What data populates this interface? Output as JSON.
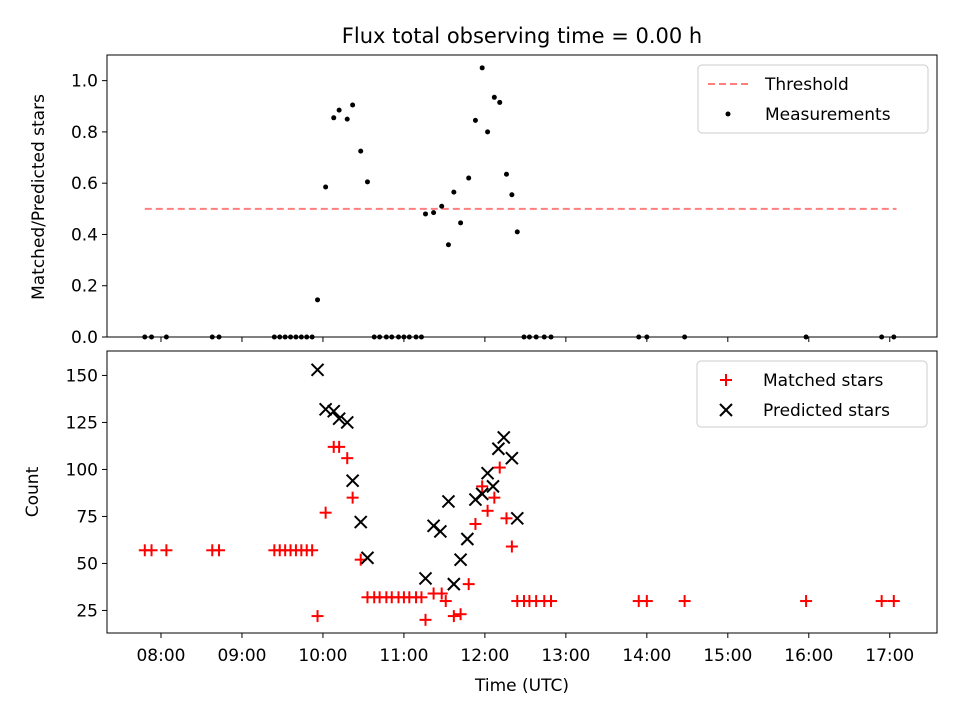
{
  "title": "Flux total observing time = 0.00 h",
  "chart_data": [
    {
      "type": "scatter",
      "ylabel": "Matched/Predicted stars",
      "ylim": [
        0,
        1.1
      ],
      "y_ticks": [
        "0.0",
        "0.2",
        "0.4",
        "0.6",
        "0.8",
        "1.0"
      ],
      "y_tick_values": [
        0,
        0.2,
        0.4,
        0.6,
        0.8,
        1.0
      ],
      "xlim": [
        "07:20",
        "17:35"
      ],
      "legend_position": "top-right",
      "threshold": {
        "name": "Threshold",
        "value": 0.5,
        "x_start": "07:48",
        "x_end": "17:05",
        "color": "#ff7f7f"
      },
      "series": [
        {
          "name": "Measurements",
          "color": "#000000",
          "marker": "dot",
          "points": [
            [
              "07:48",
              0.0
            ],
            [
              "07:53",
              0.0
            ],
            [
              "08:04",
              0.0
            ],
            [
              "08:38",
              0.0
            ],
            [
              "08:43",
              0.0
            ],
            [
              "09:24",
              0.0
            ],
            [
              "09:28",
              0.0
            ],
            [
              "09:32",
              0.0
            ],
            [
              "09:36",
              0.0
            ],
            [
              "09:40",
              0.0
            ],
            [
              "09:44",
              0.0
            ],
            [
              "09:48",
              0.0
            ],
            [
              "09:52",
              0.0
            ],
            [
              "09:56",
              0.145
            ],
            [
              "10:02",
              0.585
            ],
            [
              "10:08",
              0.855
            ],
            [
              "10:12",
              0.885
            ],
            [
              "10:18",
              0.85
            ],
            [
              "10:22",
              0.905
            ],
            [
              "10:28",
              0.725
            ],
            [
              "10:33",
              0.605
            ],
            [
              "10:38",
              0.0
            ],
            [
              "10:42",
              0.0
            ],
            [
              "10:47",
              0.0
            ],
            [
              "10:51",
              0.0
            ],
            [
              "10:56",
              0.0
            ],
            [
              "11:00",
              0.0
            ],
            [
              "11:04",
              0.0
            ],
            [
              "11:09",
              0.0
            ],
            [
              "11:13",
              0.0
            ],
            [
              "11:16",
              0.48
            ],
            [
              "11:22",
              0.485
            ],
            [
              "11:28",
              0.51
            ],
            [
              "11:33",
              0.36
            ],
            [
              "11:37",
              0.565
            ],
            [
              "11:42",
              0.445
            ],
            [
              "11:48",
              0.62
            ],
            [
              "11:53",
              0.845
            ],
            [
              "11:58",
              1.05
            ],
            [
              "12:02",
              0.8
            ],
            [
              "12:07",
              0.935
            ],
            [
              "12:11",
              0.915
            ],
            [
              "12:16",
              0.635
            ],
            [
              "12:20",
              0.555
            ],
            [
              "12:24",
              0.41
            ],
            [
              "12:29",
              0.0
            ],
            [
              "12:33",
              0.0
            ],
            [
              "12:38",
              0.0
            ],
            [
              "12:44",
              0.0
            ],
            [
              "12:49",
              0.0
            ],
            [
              "13:54",
              0.0
            ],
            [
              "14:00",
              0.0
            ],
            [
              "14:28",
              0.0
            ],
            [
              "15:58",
              0.0
            ],
            [
              "16:54",
              0.0
            ],
            [
              "17:03",
              0.0
            ]
          ]
        }
      ]
    },
    {
      "type": "scatter",
      "ylabel": "Count",
      "xlabel": "Time (UTC)",
      "ylim": [
        13,
        163
      ],
      "y_ticks": [
        "25",
        "50",
        "75",
        "100",
        "125",
        "150"
      ],
      "y_tick_values": [
        25,
        50,
        75,
        100,
        125,
        150
      ],
      "xlim": [
        "07:20",
        "17:35"
      ],
      "x_ticks": [
        "08:00",
        "09:00",
        "10:00",
        "11:00",
        "12:00",
        "13:00",
        "14:00",
        "15:00",
        "16:00",
        "17:00"
      ],
      "legend_position": "top-right",
      "series": [
        {
          "name": "Matched stars",
          "color": "#ff0000",
          "marker": "plus",
          "points": [
            [
              "07:48",
              57
            ],
            [
              "07:53",
              57
            ],
            [
              "08:04",
              57
            ],
            [
              "08:38",
              57
            ],
            [
              "08:43",
              57
            ],
            [
              "09:24",
              57
            ],
            [
              "09:28",
              57
            ],
            [
              "09:32",
              57
            ],
            [
              "09:36",
              57
            ],
            [
              "09:40",
              57
            ],
            [
              "09:44",
              57
            ],
            [
              "09:48",
              57
            ],
            [
              "09:52",
              57
            ],
            [
              "09:56",
              22
            ],
            [
              "10:02",
              77
            ],
            [
              "10:08",
              112
            ],
            [
              "10:12",
              112
            ],
            [
              "10:18",
              106
            ],
            [
              "10:22",
              85
            ],
            [
              "10:28",
              52
            ],
            [
              "10:33",
              32
            ],
            [
              "10:38",
              32
            ],
            [
              "10:42",
              32
            ],
            [
              "10:47",
              32
            ],
            [
              "10:51",
              32
            ],
            [
              "10:56",
              32
            ],
            [
              "11:00",
              32
            ],
            [
              "11:04",
              32
            ],
            [
              "11:09",
              32
            ],
            [
              "11:13",
              32
            ],
            [
              "11:16",
              20
            ],
            [
              "11:22",
              34
            ],
            [
              "11:28",
              34
            ],
            [
              "11:31",
              30
            ],
            [
              "11:37",
              22
            ],
            [
              "11:42",
              23
            ],
            [
              "11:48",
              39
            ],
            [
              "11:53",
              71
            ],
            [
              "11:58",
              91
            ],
            [
              "12:02",
              78
            ],
            [
              "12:07",
              85
            ],
            [
              "12:11",
              101
            ],
            [
              "12:16",
              74
            ],
            [
              "12:20",
              59
            ],
            [
              "12:24",
              30
            ],
            [
              "12:29",
              30
            ],
            [
              "12:33",
              30
            ],
            [
              "12:38",
              30
            ],
            [
              "12:44",
              30
            ],
            [
              "12:49",
              30
            ],
            [
              "13:54",
              30
            ],
            [
              "14:00",
              30
            ],
            [
              "14:28",
              30
            ],
            [
              "15:58",
              30
            ],
            [
              "16:54",
              30
            ],
            [
              "17:03",
              30
            ]
          ]
        },
        {
          "name": "Predicted stars",
          "color": "#000000",
          "marker": "x",
          "points": [
            [
              "09:56",
              153
            ],
            [
              "10:02",
              132
            ],
            [
              "10:08",
              131
            ],
            [
              "10:12",
              127
            ],
            [
              "10:18",
              125
            ],
            [
              "10:22",
              94
            ],
            [
              "10:28",
              72
            ],
            [
              "10:33",
              53
            ],
            [
              "11:16",
              42
            ],
            [
              "11:22",
              70
            ],
            [
              "11:27",
              67
            ],
            [
              "11:33",
              83
            ],
            [
              "11:37",
              39
            ],
            [
              "11:42",
              52
            ],
            [
              "11:47",
              63
            ],
            [
              "11:53",
              84
            ],
            [
              "11:58",
              87
            ],
            [
              "12:02",
              98
            ],
            [
              "12:06",
              91
            ],
            [
              "12:10",
              111
            ],
            [
              "12:14",
              117
            ],
            [
              "12:20",
              106
            ],
            [
              "12:24",
              74
            ]
          ]
        }
      ]
    }
  ]
}
